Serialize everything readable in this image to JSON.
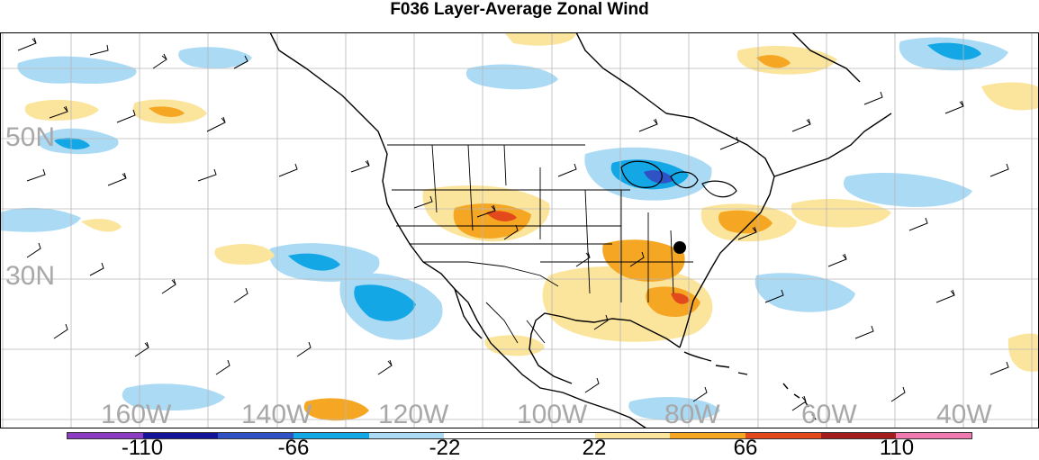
{
  "title": "F036 Layer-Average Zonal Wind",
  "map": {
    "lat_labels": [
      "50N",
      "30N"
    ],
    "lon_labels": [
      "160W",
      "140W",
      "120W",
      "100W",
      "80W",
      "60W",
      "40W"
    ]
  },
  "colorbar": {
    "colors": [
      "#8b3cc2",
      "#13149a",
      "#2f52c4",
      "#14a7e6",
      "#abdaf5",
      "#ffffff",
      "#ffffff",
      "#fbe49b",
      "#f5a623",
      "#e24a1c",
      "#a41c1c",
      "#f07ab0"
    ],
    "tick_labels": [
      "-110",
      "-66",
      "-22",
      "22",
      "66",
      "110"
    ]
  },
  "legend": {
    "neg_colors": [
      "#abdaf5",
      "#14a7e6",
      "#2f52c4"
    ],
    "pos_colors": [
      "#fbe49b",
      "#f5a623",
      "#e24a1c"
    ]
  }
}
